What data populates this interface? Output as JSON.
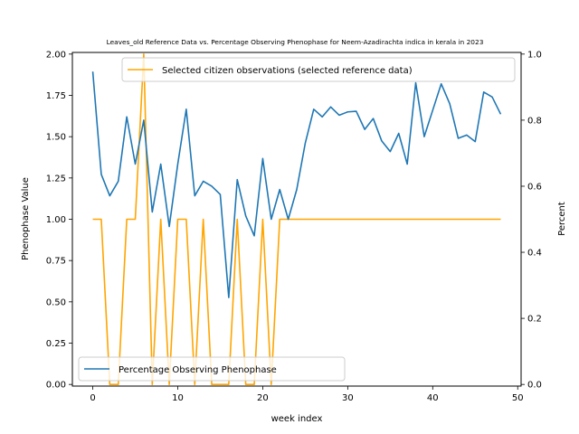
{
  "chart_data": {
    "type": "line",
    "title": "Leaves_old Reference Data vs. Percentage Observing Phenophase for Neem-Azadirachta indica in kerala in 2023",
    "xlabel": "week index",
    "ylabel_left": "Phenophase Value",
    "ylabel_right": "Percent",
    "xlim": [
      -2.4,
      50.4
    ],
    "ylim_left": [
      -0.01,
      2.01
    ],
    "ylim_right": [
      -0.005,
      1.005
    ],
    "x_ticks": [
      0,
      10,
      20,
      30,
      40,
      50
    ],
    "y_ticks_left": [
      "0.00",
      "0.25",
      "0.50",
      "0.75",
      "1.00",
      "1.25",
      "1.50",
      "1.75",
      "2.00"
    ],
    "y_ticks_right": [
      "0.0",
      "0.2",
      "0.4",
      "0.6",
      "0.8",
      "1.0"
    ],
    "legend_top": {
      "label": "Selected citizen observations (selected reference data)",
      "placement": "top-right"
    },
    "legend_bottom": {
      "label": "Percentage Observing Phenophase",
      "placement": "bottom-left"
    },
    "series": [
      {
        "name": "Selected citizen observations (selected reference data)",
        "axis": "left",
        "color": "#ffa500",
        "x": [
          0,
          1,
          2,
          3,
          4,
          5,
          6,
          7,
          8,
          9,
          10,
          11,
          12,
          13,
          14,
          15,
          16,
          17,
          18,
          19,
          20,
          21,
          22,
          23,
          24,
          25,
          26,
          27,
          28,
          29,
          30,
          31,
          32,
          33,
          34,
          35,
          36,
          37,
          38,
          39,
          40,
          41,
          42,
          43,
          44,
          45,
          46,
          47,
          48
        ],
        "values": [
          1,
          1,
          0,
          0,
          1,
          1,
          2,
          0,
          1,
          0,
          1,
          1,
          0,
          1,
          0,
          0,
          0,
          1,
          0,
          0,
          1,
          0,
          1,
          1,
          1,
          1,
          1,
          1,
          1,
          1,
          1,
          1,
          1,
          1,
          1,
          1,
          1,
          1,
          1,
          1,
          1,
          1,
          1,
          1,
          1,
          1,
          1,
          1,
          1
        ]
      },
      {
        "name": "Percentage Observing Phenophase",
        "axis": "right",
        "color": "#1f77b4",
        "x": [
          0,
          1,
          2,
          3,
          4,
          5,
          6,
          7,
          8,
          9,
          10,
          11,
          12,
          13,
          14,
          15,
          16,
          17,
          18,
          19,
          20,
          21,
          22,
          23,
          24,
          25,
          26,
          27,
          28,
          29,
          30,
          31,
          32,
          33,
          34,
          35,
          36,
          37,
          38,
          39,
          40,
          41,
          42,
          43,
          44,
          45,
          46,
          47,
          48
        ],
        "values": [
          0.947,
          0.636,
          0.571,
          0.615,
          0.81,
          0.667,
          0.8,
          0.522,
          0.667,
          0.478,
          0.667,
          0.833,
          0.571,
          0.615,
          0.6,
          0.575,
          0.263,
          0.62,
          0.51,
          0.45,
          0.684,
          0.5,
          0.59,
          0.5,
          0.59,
          0.73,
          0.833,
          0.81,
          0.84,
          0.815,
          0.825,
          0.827,
          0.772,
          0.805,
          0.737,
          0.705,
          0.76,
          0.667,
          0.913,
          0.75,
          0.83,
          0.91,
          0.85,
          0.745,
          0.755,
          0.735,
          0.885,
          0.87,
          0.818
        ]
      }
    ]
  }
}
